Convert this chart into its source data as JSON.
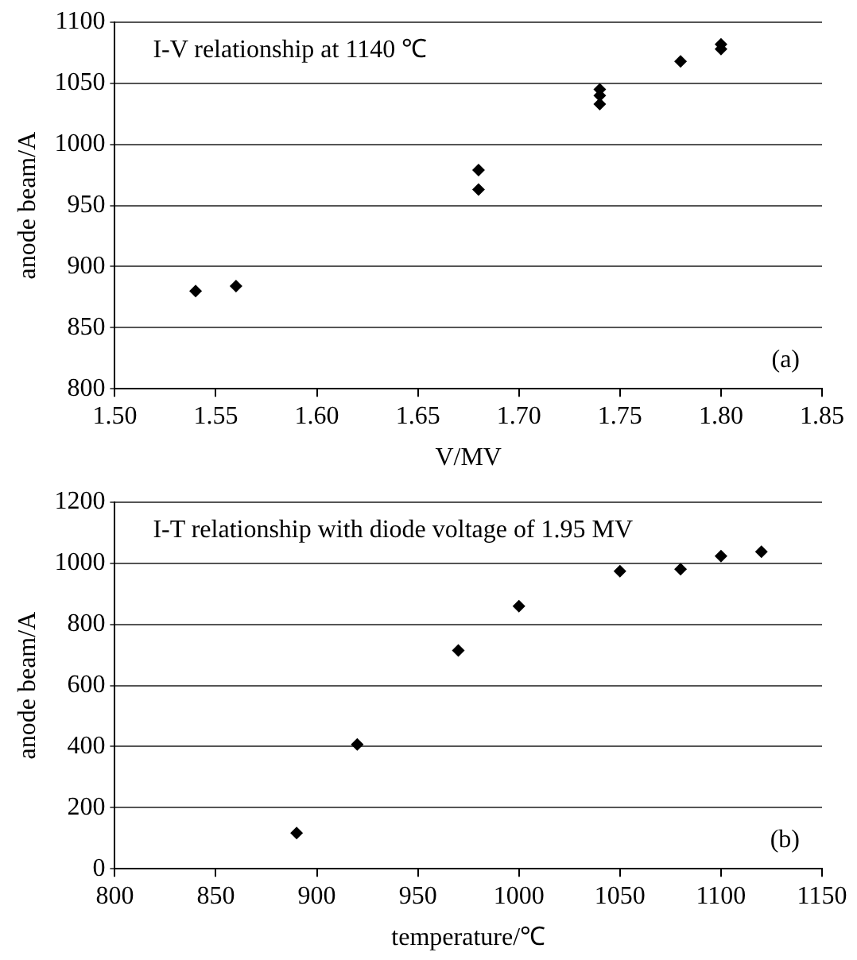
{
  "chart_data": [
    {
      "type": "scatter",
      "title": "I-V relationship at 1140 ℃",
      "xlabel": "V/MV",
      "ylabel": "anode beam/A",
      "annotations": [
        "(a)"
      ],
      "x": [
        1.54,
        1.56,
        1.68,
        1.68,
        1.74,
        1.74,
        1.74,
        1.78,
        1.8,
        1.8
      ],
      "values": [
        880,
        884,
        979,
        963,
        1045,
        1040,
        1033,
        1068,
        1082,
        1078
      ],
      "color": "#000000",
      "marker": "diamond",
      "grid": "y",
      "xlim": [
        1.5,
        1.85
      ],
      "xticks": [
        {
          "value": 1.5,
          "label": "1.50"
        },
        {
          "value": 1.55,
          "label": "1.55"
        },
        {
          "value": 1.6,
          "label": "1.60"
        },
        {
          "value": 1.65,
          "label": "1.65"
        },
        {
          "value": 1.7,
          "label": "1.70"
        },
        {
          "value": 1.75,
          "label": "1.75"
        },
        {
          "value": 1.8,
          "label": "1.80"
        },
        {
          "value": 1.85,
          "label": "1.85"
        }
      ],
      "ylim": [
        800,
        1100
      ],
      "yticks": [
        800,
        850,
        900,
        950,
        1000,
        1050,
        1100
      ]
    },
    {
      "type": "scatter",
      "title": "I-T relationship with diode voltage of 1.95 MV",
      "xlabel": "temperature/℃",
      "ylabel": "anode beam/A",
      "annotations": [
        "(b)"
      ],
      "x": [
        890,
        920,
        970,
        1000,
        1050,
        1080,
        1100,
        1120
      ],
      "values": [
        117,
        407,
        715,
        860,
        974,
        981,
        1024,
        1038
      ],
      "color": "#000000",
      "marker": "diamond",
      "grid": "y",
      "xlim": [
        800,
        1150
      ],
      "xticks": [
        800,
        850,
        900,
        950,
        1000,
        1050,
        1100,
        1150
      ],
      "ylim": [
        0,
        1200
      ],
      "yticks": [
        0,
        200,
        400,
        600,
        800,
        1000,
        1200
      ]
    }
  ]
}
